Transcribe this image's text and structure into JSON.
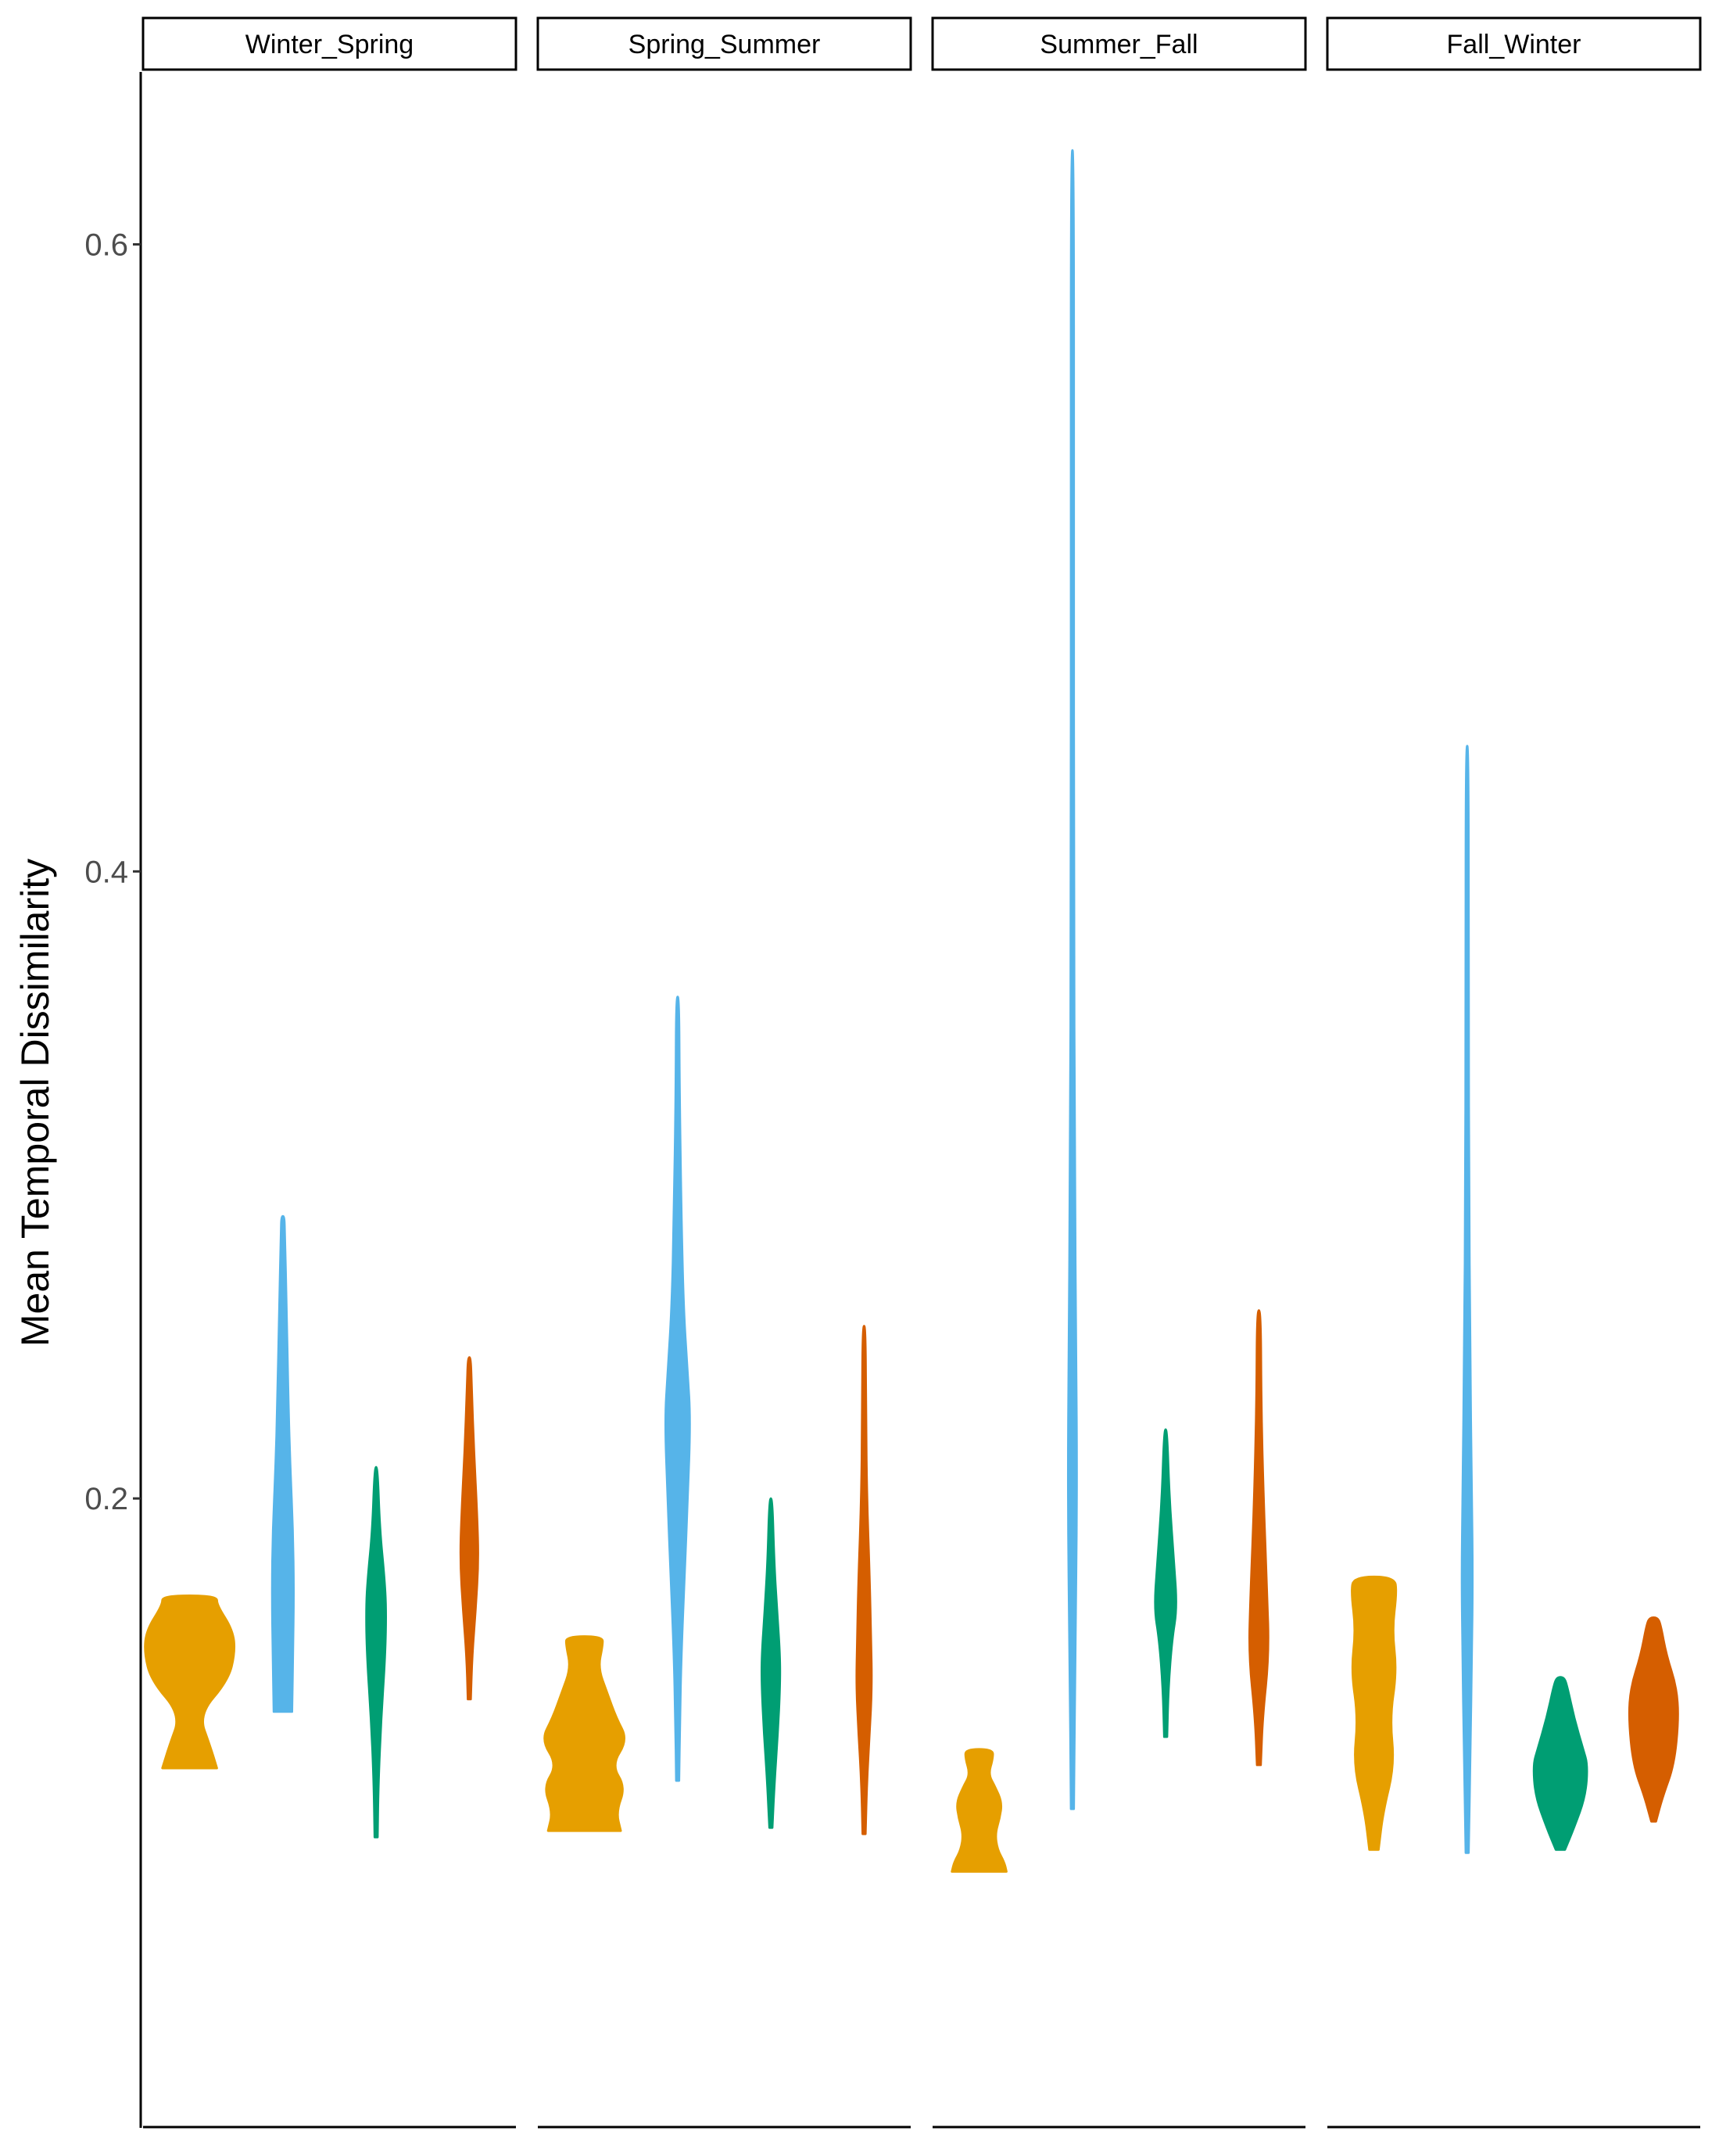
{
  "chart_data": {
    "type": "violin",
    "ylabel": "Mean Temporal Dissimilarity",
    "xlabel": "",
    "ylim": [
      0.0,
      0.655
    ],
    "y_ticks": [
      0.2,
      0.4,
      0.6
    ],
    "y_tick_labels": [
      "0.2",
      "0.4",
      "0.6"
    ],
    "grid": false,
    "legend": "none",
    "group_colors": [
      "#E69F00",
      "#56B4E9",
      "#009E73",
      "#D55E00"
    ],
    "facets": [
      {
        "label": "Winter_Spring",
        "violins": [
          {
            "color": "#E69F00",
            "profile": [
              [
                0.114,
                0.6
              ],
              [
                0.121,
                0.45
              ],
              [
                0.131,
                0.2
              ],
              [
                0.142,
                0.85
              ],
              [
                0.151,
                1.0
              ],
              [
                0.158,
                0.95
              ],
              [
                0.166,
                0.6
              ],
              [
                0.169,
                0.6
              ]
            ]
          },
          {
            "color": "#56B4E9",
            "profile": [
              [
                0.132,
                0.2
              ],
              [
                0.15,
                0.22
              ],
              [
                0.17,
                0.24
              ],
              [
                0.19,
                0.22
              ],
              [
                0.21,
                0.16
              ],
              [
                0.23,
                0.12
              ],
              [
                0.26,
                0.08
              ],
              [
                0.285,
                0.04
              ],
              [
                0.29,
                0.03
              ]
            ]
          },
          {
            "color": "#009E73",
            "profile": [
              [
                0.092,
                0.02
              ],
              [
                0.11,
                0.05
              ],
              [
                0.13,
                0.11
              ],
              [
                0.15,
                0.2
              ],
              [
                0.165,
                0.22
              ],
              [
                0.175,
                0.18
              ],
              [
                0.19,
                0.08
              ],
              [
                0.21,
                0.03
              ]
            ]
          },
          {
            "color": "#D55E00",
            "profile": [
              [
                0.136,
                0.02
              ],
              [
                0.15,
                0.06
              ],
              [
                0.165,
                0.14
              ],
              [
                0.18,
                0.2
              ],
              [
                0.195,
                0.17
              ],
              [
                0.215,
                0.1
              ],
              [
                0.235,
                0.05
              ],
              [
                0.245,
                0.03
              ]
            ]
          }
        ]
      },
      {
        "label": "Spring_Summer",
        "violins": [
          {
            "color": "#E69F00",
            "profile": [
              [
                0.094,
                0.8
              ],
              [
                0.1,
                0.7
              ],
              [
                0.108,
                0.9
              ],
              [
                0.115,
                0.6
              ],
              [
                0.123,
                0.95
              ],
              [
                0.13,
                0.7
              ],
              [
                0.138,
                0.5
              ],
              [
                0.146,
                0.3
              ],
              [
                0.153,
                0.4
              ],
              [
                0.156,
                0.4
              ]
            ]
          },
          {
            "color": "#56B4E9",
            "profile": [
              [
                0.11,
                0.03
              ],
              [
                0.13,
                0.05
              ],
              [
                0.15,
                0.08
              ],
              [
                0.175,
                0.15
              ],
              [
                0.2,
                0.22
              ],
              [
                0.225,
                0.28
              ],
              [
                0.24,
                0.22
              ],
              [
                0.26,
                0.13
              ],
              [
                0.29,
                0.08
              ],
              [
                0.33,
                0.04
              ],
              [
                0.36,
                0.03
              ]
            ]
          },
          {
            "color": "#009E73",
            "profile": [
              [
                0.095,
                0.03
              ],
              [
                0.11,
                0.08
              ],
              [
                0.125,
                0.15
              ],
              [
                0.14,
                0.2
              ],
              [
                0.15,
                0.2
              ],
              [
                0.165,
                0.13
              ],
              [
                0.18,
                0.07
              ],
              [
                0.2,
                0.02
              ]
            ]
          },
          {
            "color": "#D55E00",
            "profile": [
              [
                0.093,
                0.03
              ],
              [
                0.11,
                0.06
              ],
              [
                0.125,
                0.12
              ],
              [
                0.14,
                0.17
              ],
              [
                0.155,
                0.15
              ],
              [
                0.175,
                0.12
              ],
              [
                0.2,
                0.06
              ],
              [
                0.225,
                0.04
              ],
              [
                0.255,
                0.02
              ]
            ]
          }
        ]
      },
      {
        "label": "Summer_Fall",
        "violins": [
          {
            "color": "#E69F00",
            "profile": [
              [
                0.081,
                0.6
              ],
              [
                0.084,
                0.55
              ],
              [
                0.088,
                0.4
              ],
              [
                0.093,
                0.35
              ],
              [
                0.098,
                0.45
              ],
              [
                0.103,
                0.5
              ],
              [
                0.108,
                0.35
              ],
              [
                0.112,
                0.2
              ],
              [
                0.117,
                0.3
              ],
              [
                0.12,
                0.3
              ]
            ]
          },
          {
            "color": "#56B4E9",
            "profile": [
              [
                0.101,
                0.02
              ],
              [
                0.15,
                0.06
              ],
              [
                0.2,
                0.1
              ],
              [
                0.25,
                0.08
              ],
              [
                0.3,
                0.05
              ],
              [
                0.4,
                0.03
              ],
              [
                0.5,
                0.02
              ],
              [
                0.63,
                0.02
              ]
            ]
          },
          {
            "color": "#009E73",
            "profile": [
              [
                0.124,
                0.03
              ],
              [
                0.14,
                0.06
              ],
              [
                0.155,
                0.14
              ],
              [
                0.165,
                0.25
              ],
              [
                0.18,
                0.18
              ],
              [
                0.2,
                0.08
              ],
              [
                0.222,
                0.03
              ]
            ]
          },
          {
            "color": "#D55E00",
            "profile": [
              [
                0.115,
                0.04
              ],
              [
                0.13,
                0.08
              ],
              [
                0.15,
                0.22
              ],
              [
                0.17,
                0.18
              ],
              [
                0.2,
                0.1
              ],
              [
                0.23,
                0.05
              ],
              [
                0.26,
                0.04
              ]
            ]
          }
        ]
      },
      {
        "label": "Fall_Winter",
        "violins": [
          {
            "color": "#E69F00",
            "profile": [
              [
                0.088,
                0.1
              ],
              [
                0.1,
                0.2
              ],
              [
                0.115,
                0.45
              ],
              [
                0.13,
                0.35
              ],
              [
                0.145,
                0.5
              ],
              [
                0.158,
                0.4
              ],
              [
                0.17,
                0.5
              ],
              [
                0.175,
                0.45
              ]
            ]
          },
          {
            "color": "#56B4E9",
            "profile": [
              [
                0.087,
                0.02
              ],
              [
                0.12,
                0.07
              ],
              [
                0.15,
                0.1
              ],
              [
                0.175,
                0.12
              ],
              [
                0.2,
                0.1
              ],
              [
                0.25,
                0.06
              ],
              [
                0.3,
                0.04
              ],
              [
                0.35,
                0.025
              ],
              [
                0.44,
                0.02
              ]
            ]
          },
          {
            "color": "#009E73",
            "profile": [
              [
                0.088,
                0.1
              ],
              [
                0.095,
                0.3
              ],
              [
                0.105,
                0.55
              ],
              [
                0.115,
                0.6
              ],
              [
                0.12,
                0.5
              ],
              [
                0.13,
                0.3
              ],
              [
                0.14,
                0.15
              ],
              [
                0.143,
                0.08
              ]
            ]
          },
          {
            "color": "#D55E00",
            "profile": [
              [
                0.097,
                0.05
              ],
              [
                0.105,
                0.2
              ],
              [
                0.115,
                0.45
              ],
              [
                0.13,
                0.55
              ],
              [
                0.14,
                0.5
              ],
              [
                0.15,
                0.28
              ],
              [
                0.16,
                0.15
              ],
              [
                0.162,
                0.08
              ]
            ]
          }
        ]
      }
    ]
  }
}
